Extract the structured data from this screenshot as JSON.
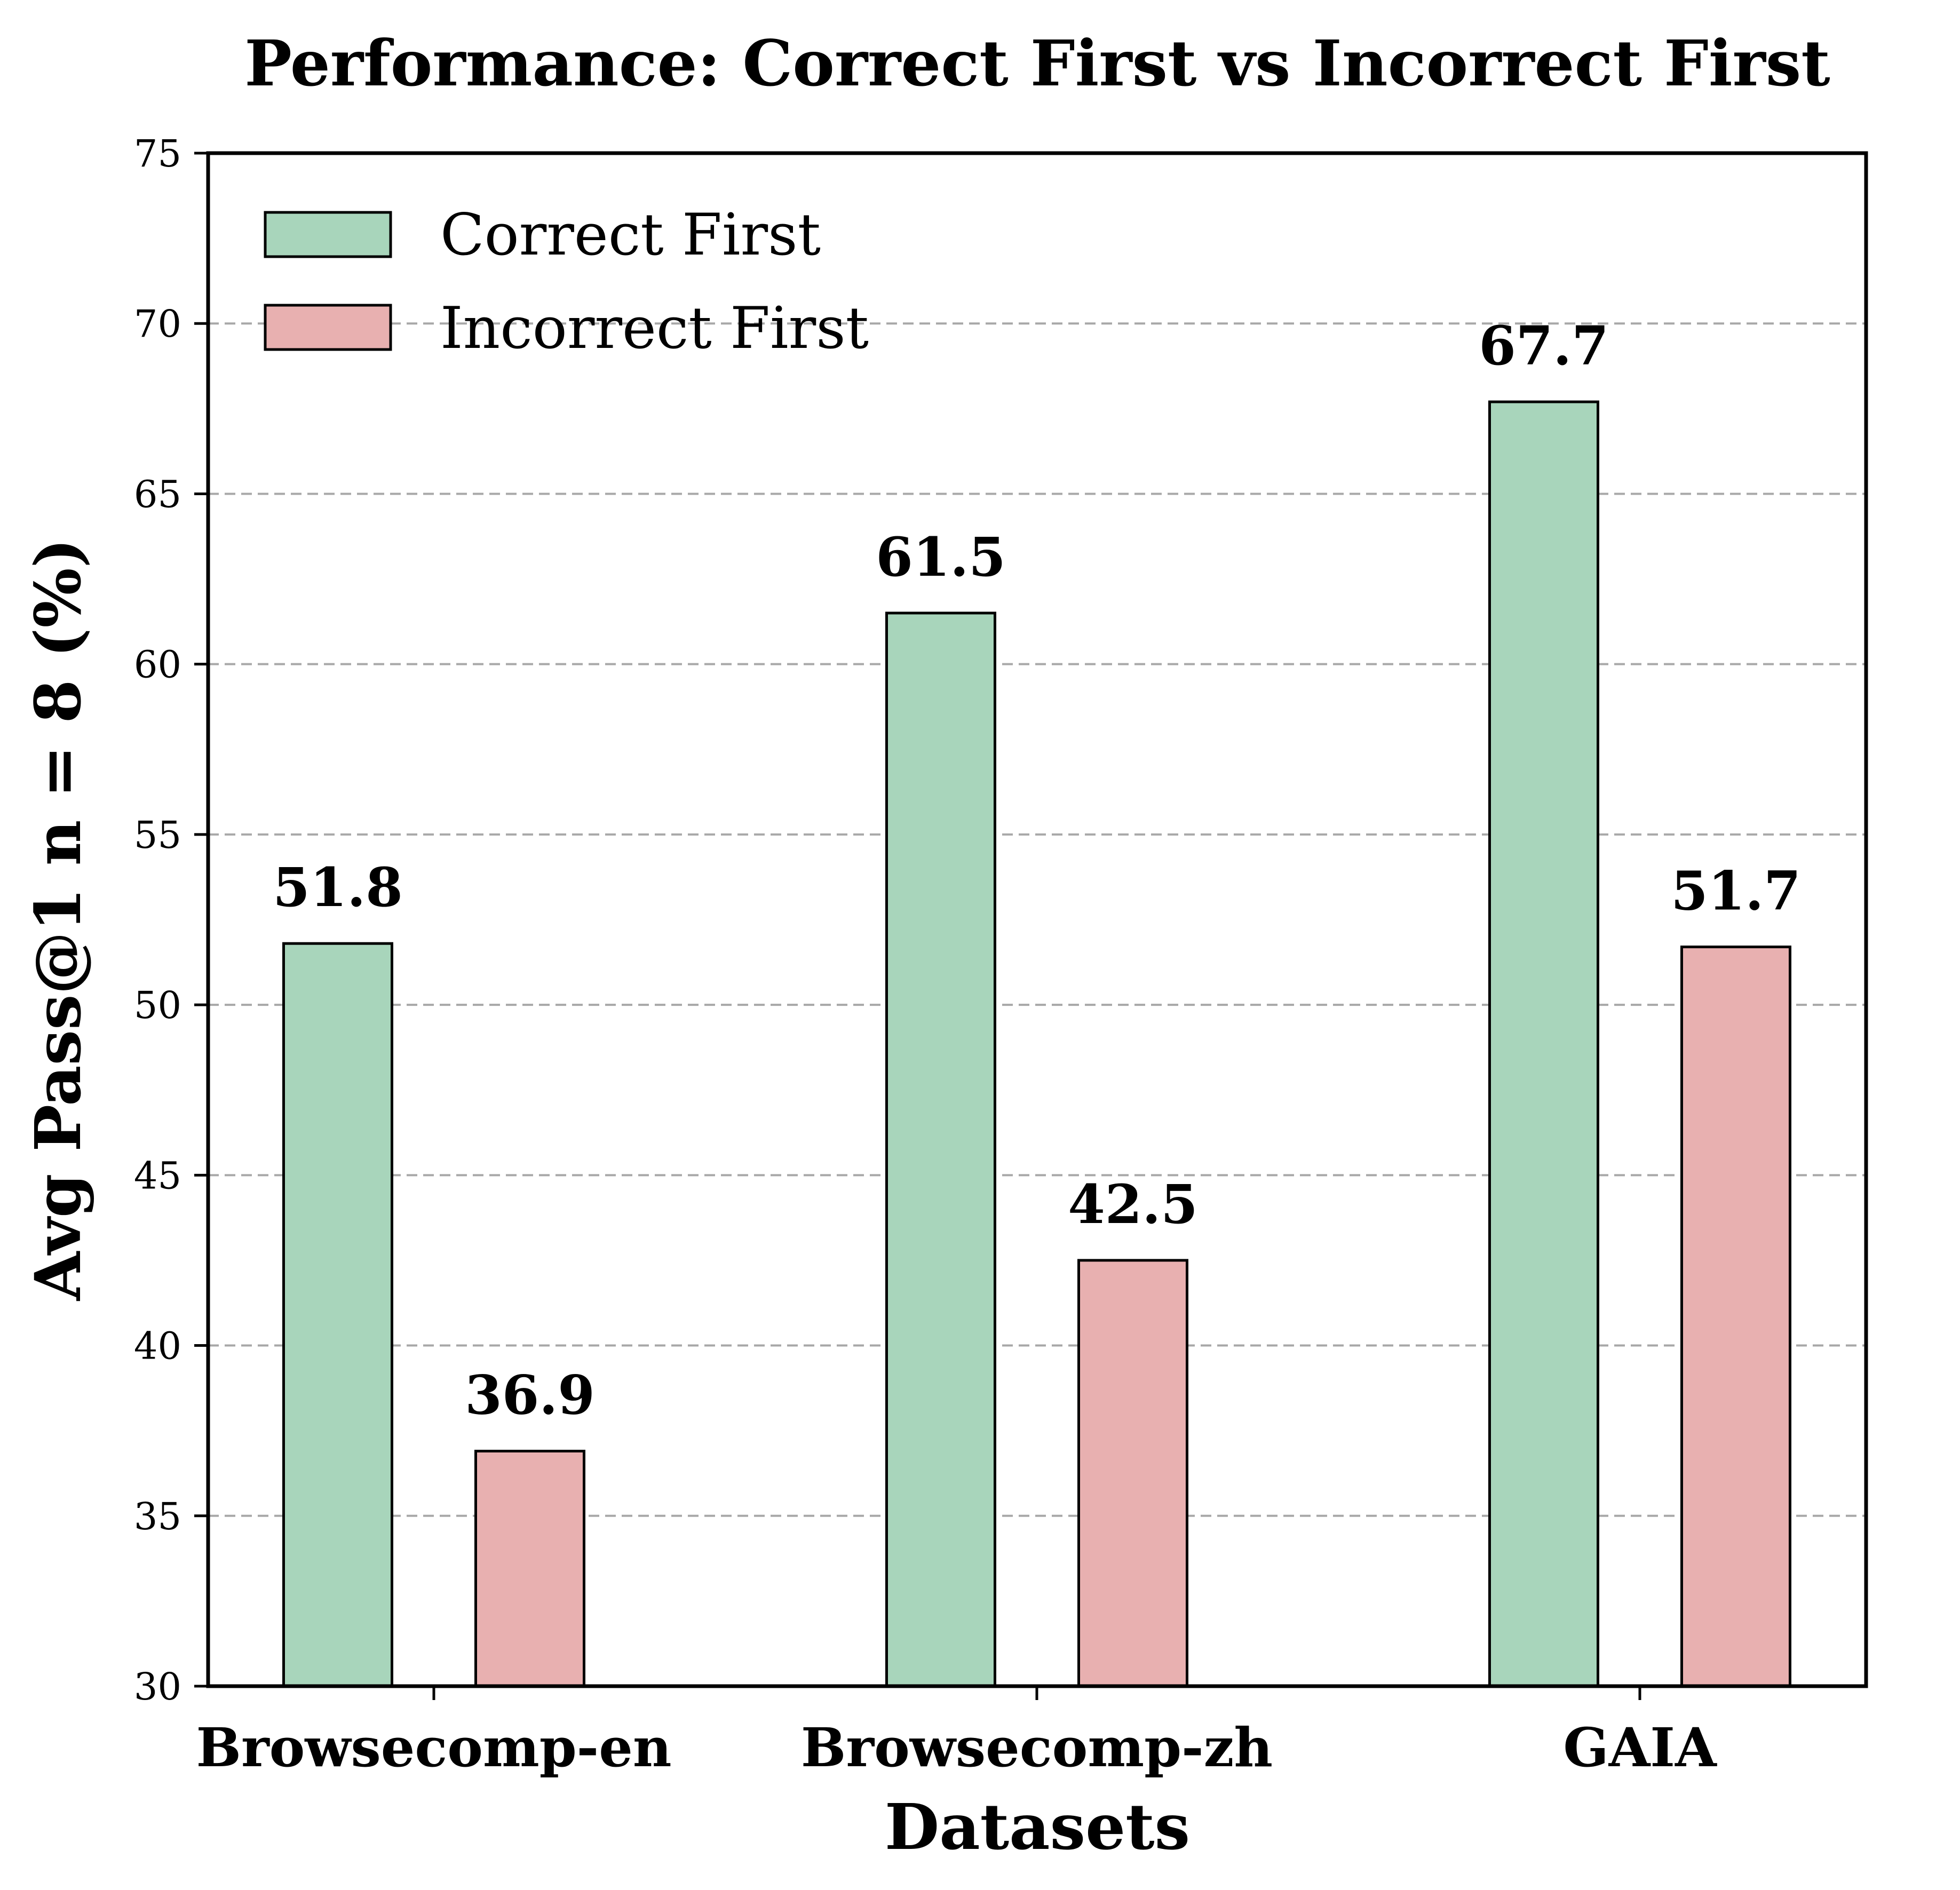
{
  "chart_data": {
    "type": "bar",
    "title": "Performance: Correct First vs Incorrect First",
    "xlabel": "Datasets",
    "ylabel": "Avg Pass@1 n = 8 (%)",
    "categories": [
      "Browsecomp-en",
      "Browsecomp-zh",
      "GAIA"
    ],
    "series": [
      {
        "name": "Correct First",
        "color": "#a8d5bb",
        "values": [
          51.8,
          61.5,
          67.7
        ]
      },
      {
        "name": "Incorrect First",
        "color": "#e8b0b0",
        "values": [
          36.9,
          42.5,
          51.7
        ]
      }
    ],
    "ylim": [
      30,
      75
    ],
    "yticks": [
      30,
      35,
      40,
      45,
      50,
      55,
      60,
      65,
      70,
      75
    ],
    "grid": "horizontal dashed",
    "legend_position": "top-left"
  }
}
